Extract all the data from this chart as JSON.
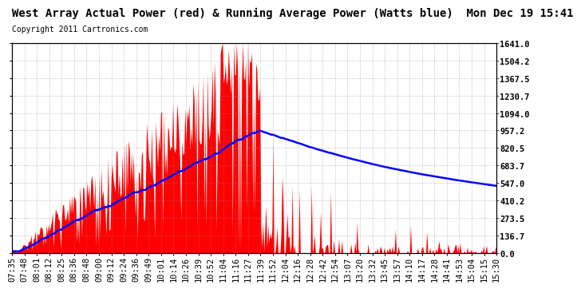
{
  "title": "West Array Actual Power (red) & Running Average Power (Watts blue)  Mon Dec 19 15:41",
  "copyright": "Copyright 2011 Cartronics.com",
  "yticks": [
    0.0,
    136.7,
    273.5,
    410.2,
    547.0,
    683.7,
    820.5,
    957.2,
    1094.0,
    1230.7,
    1367.5,
    1504.2,
    1641.0
  ],
  "ymax": 1641.0,
  "ymin": 0.0,
  "background_color": "#ffffff",
  "plot_bg_color": "#ffffff",
  "grid_color": "#888888",
  "red_color": "#ff0000",
  "blue_color": "#0000ff",
  "title_fontsize": 10,
  "copyright_fontsize": 7,
  "tick_fontsize": 7.5,
  "xtick_labels": [
    "07:35",
    "07:48",
    "08:01",
    "08:12",
    "08:25",
    "08:36",
    "08:48",
    "09:00",
    "09:12",
    "09:24",
    "09:36",
    "09:49",
    "10:01",
    "10:14",
    "10:26",
    "10:39",
    "10:52",
    "11:04",
    "11:16",
    "11:27",
    "11:39",
    "11:52",
    "12:04",
    "12:16",
    "12:28",
    "12:42",
    "12:54",
    "13:07",
    "13:20",
    "13:32",
    "13:45",
    "13:57",
    "14:10",
    "14:17",
    "14:28",
    "14:41",
    "14:53",
    "15:04",
    "15:15",
    "15:30"
  ]
}
